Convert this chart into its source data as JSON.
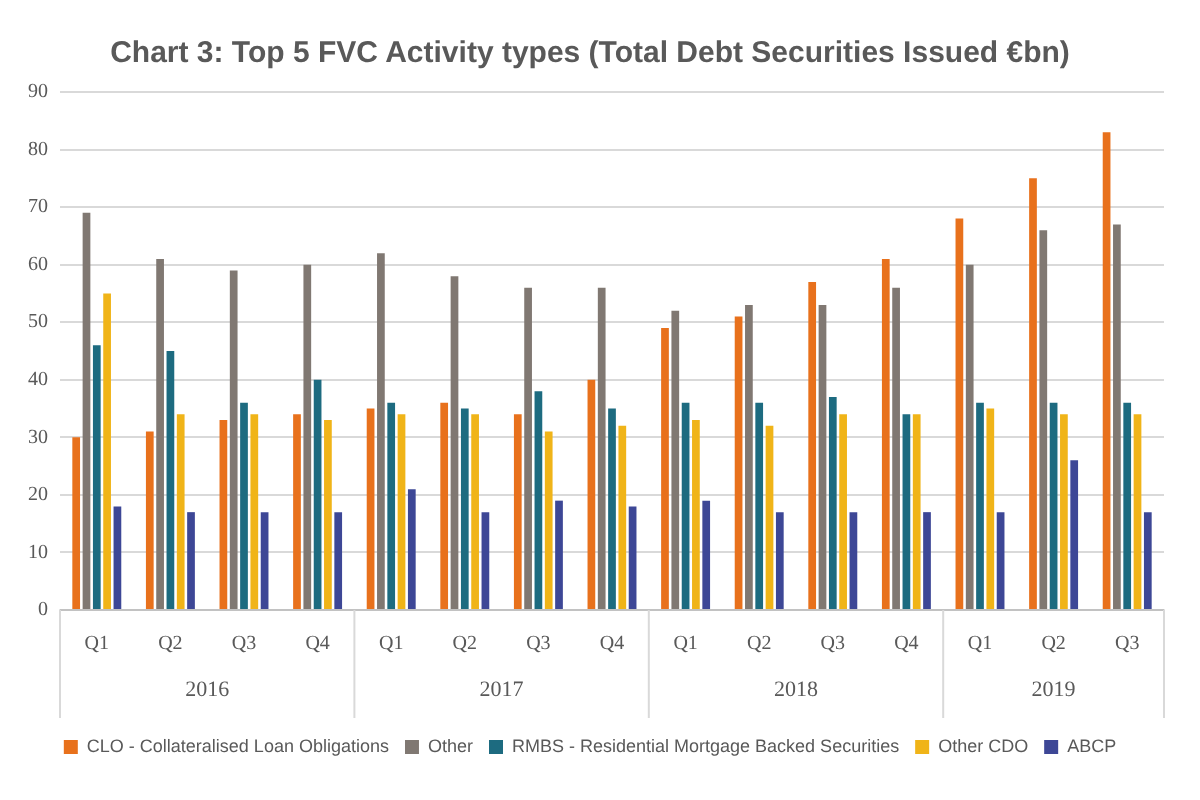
{
  "chart_data": {
    "type": "bar",
    "title": "Chart 3: Top 5 FVC Activity types (Total Debt Securities Issued €bn)",
    "categories": [
      "Q1",
      "Q2",
      "Q3",
      "Q4",
      "Q1",
      "Q2",
      "Q3",
      "Q4",
      "Q1",
      "Q2",
      "Q3",
      "Q4",
      "Q1",
      "Q2",
      "Q3"
    ],
    "series": [
      {
        "name": "CLO - Collateralised Loan Obligations",
        "color": "#e8711c",
        "values": [
          30,
          31,
          33,
          34,
          35,
          36,
          34,
          40,
          49,
          51,
          57,
          61,
          68,
          75,
          83
        ]
      },
      {
        "name": "Other",
        "color": "#807872",
        "values": [
          69,
          61,
          59,
          60,
          62,
          58,
          56,
          56,
          52,
          53,
          53,
          56,
          60,
          66,
          67
        ]
      },
      {
        "name": "RMBS - Residential Mortgage Backed Securities",
        "color": "#1d6b80",
        "values": [
          46,
          45,
          36,
          40,
          36,
          35,
          38,
          35,
          36,
          36,
          37,
          34,
          36,
          36,
          36
        ]
      },
      {
        "name": "Other CDO",
        "color": "#f0b418",
        "values": [
          55,
          34,
          34,
          33,
          34,
          34,
          31,
          32,
          33,
          32,
          34,
          34,
          35,
          34,
          34
        ]
      },
      {
        "name": "ABCP",
        "color": "#3d4796",
        "values": [
          18,
          17,
          17,
          17,
          21,
          17,
          19,
          18,
          19,
          17,
          17,
          17,
          17,
          26,
          17
        ]
      }
    ],
    "annotations": [
      "2016",
      "2017",
      "2018",
      "2019"
    ],
    "ylim": [
      0,
      90
    ],
    "yticks": [
      0,
      10,
      20,
      30,
      40,
      50,
      60,
      70,
      80,
      90
    ],
    "grid": "y",
    "legend": "bottom"
  }
}
